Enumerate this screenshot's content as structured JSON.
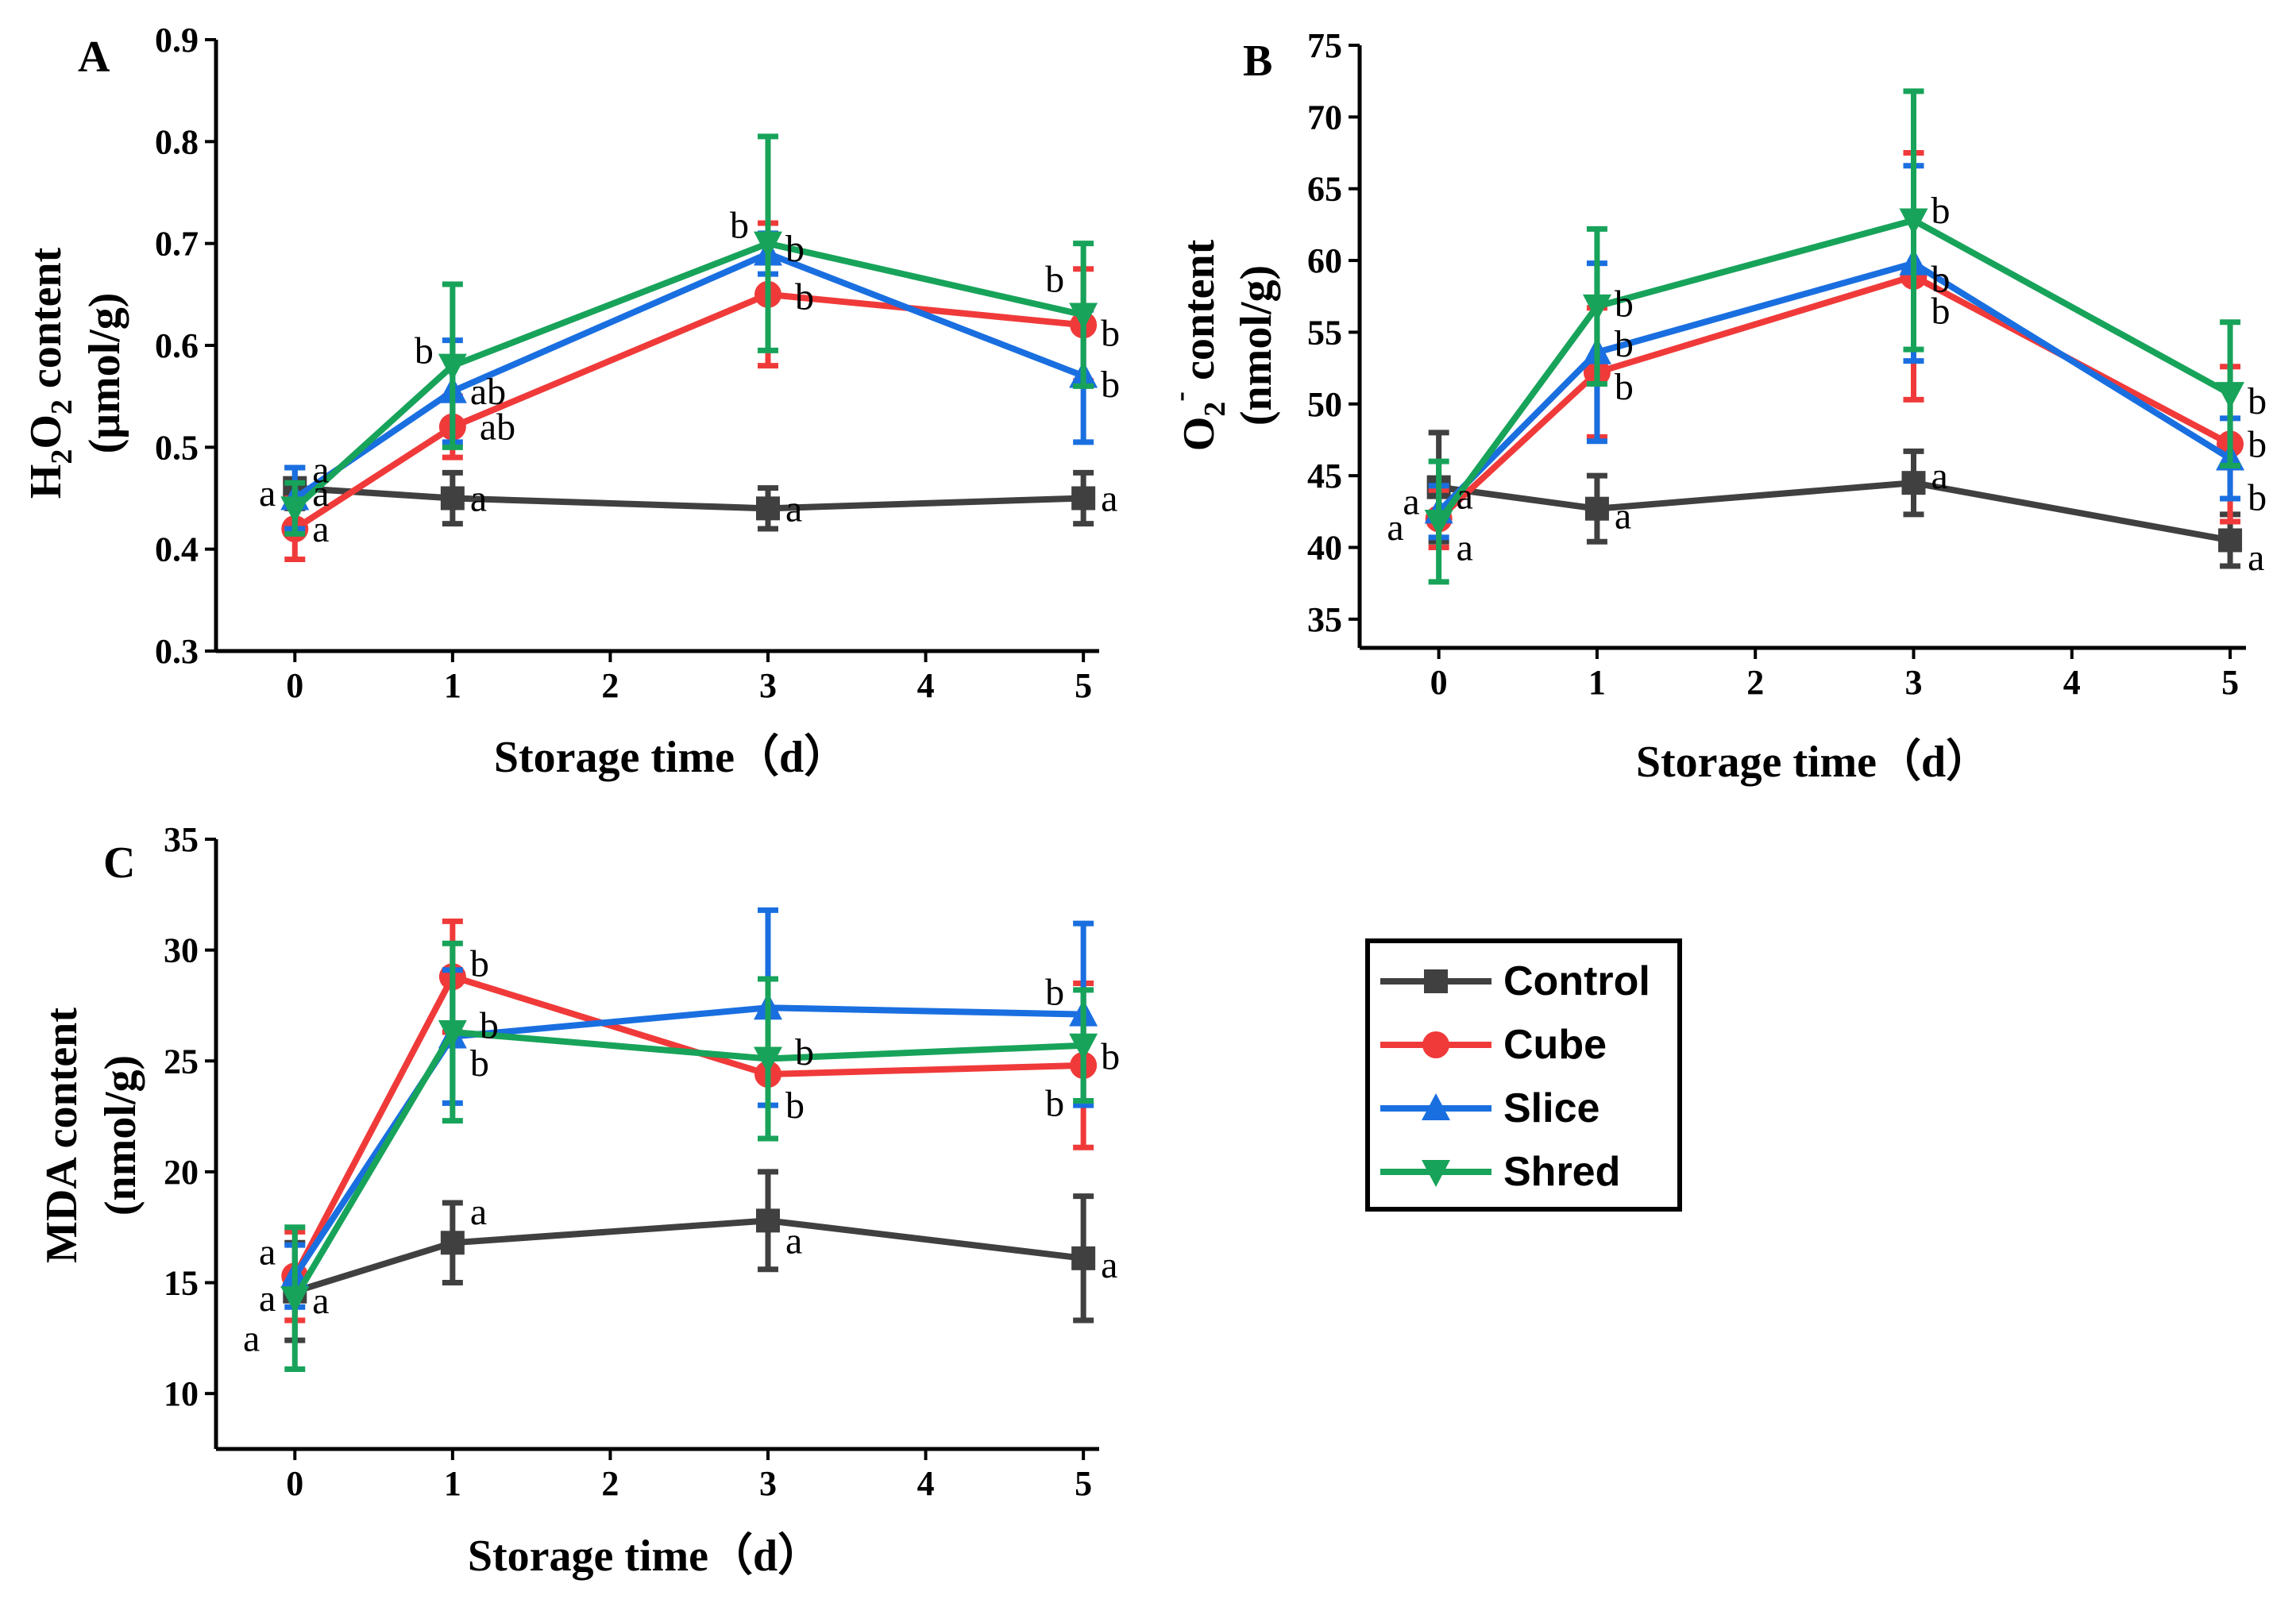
{
  "chart_data": [
    {
      "id": "A",
      "type": "line",
      "panel_label": "A",
      "xlabel": "Storage time（d）",
      "ylabel_main": "H",
      "ylabel_sub1": "2",
      "ylabel_mid": "O",
      "ylabel_sub2": "2",
      "ylabel_rest": " content",
      "ylabel_unit": "(μmol/g)",
      "xlim": [
        -0.5,
        5.1
      ],
      "ylim": [
        0.3,
        0.9
      ],
      "xticks": [
        0,
        1,
        2,
        3,
        4,
        5
      ],
      "xtick_labels": [
        "0",
        "1",
        "2",
        "3",
        "4",
        "5"
      ],
      "yticks": [
        0.3,
        0.4,
        0.5,
        0.6,
        0.7,
        0.8,
        0.9
      ],
      "ytick_labels": [
        "0.3",
        "0.4",
        "0.5",
        "0.6",
        "0.7",
        "0.8",
        "0.9"
      ],
      "x": [
        0,
        1,
        3,
        5
      ],
      "series": [
        {
          "name": "Control",
          "values": [
            0.46,
            0.45,
            0.44,
            0.45
          ],
          "err": [
            0.02,
            0.025,
            0.02,
            0.025
          ]
        },
        {
          "name": "Cube",
          "values": [
            0.42,
            0.52,
            0.65,
            0.62
          ],
          "err": [
            0.03,
            0.03,
            0.07,
            0.055
          ]
        },
        {
          "name": "Slice",
          "values": [
            0.45,
            0.555,
            0.69,
            0.57
          ],
          "err": [
            0.03,
            0.05,
            0.02,
            0.065
          ]
        },
        {
          "name": "Shred",
          "values": [
            0.44,
            0.58,
            0.7,
            0.63
          ],
          "err": [
            0.025,
            0.08,
            0.105,
            0.07
          ]
        }
      ],
      "sig_labels": [
        {
          "x": 0,
          "y": 0.455,
          "text": "a",
          "side": "left"
        },
        {
          "x": 0,
          "y": 0.478,
          "text": "a",
          "side": "right"
        },
        {
          "x": 0,
          "y": 0.455,
          "text": "a",
          "side": "right"
        },
        {
          "x": 0,
          "y": 0.42,
          "text": "a",
          "side": "right"
        },
        {
          "x": 1,
          "y": 0.45,
          "text": "a",
          "side": "right"
        },
        {
          "x": 1,
          "y": 0.555,
          "text": "ab",
          "side": "right"
        },
        {
          "x": 1,
          "y": 0.52,
          "text": "ab",
          "side": "right2"
        },
        {
          "x": 1,
          "y": 0.595,
          "text": "b",
          "side": "left"
        },
        {
          "x": 3,
          "y": 0.44,
          "text": "a",
          "side": "right"
        },
        {
          "x": 3,
          "y": 0.718,
          "text": "b",
          "side": "left"
        },
        {
          "x": 3,
          "y": 0.695,
          "text": "b",
          "side": "right"
        },
        {
          "x": 3,
          "y": 0.648,
          "text": "b",
          "side": "right2"
        },
        {
          "x": 5,
          "y": 0.45,
          "text": "a",
          "side": "right"
        },
        {
          "x": 5,
          "y": 0.665,
          "text": "b",
          "side": "left"
        },
        {
          "x": 5,
          "y": 0.612,
          "text": "b",
          "side": "right"
        },
        {
          "x": 5,
          "y": 0.562,
          "text": "b",
          "side": "right"
        }
      ]
    },
    {
      "id": "B",
      "type": "line",
      "panel_label": "B",
      "xlabel": "Storage time（d）",
      "ylabel_main": "O",
      "ylabel_sub1": "2",
      "ylabel_sup": "-",
      "ylabel_rest": " content",
      "ylabel_unit": "(nmol/g)",
      "xlim": [
        -0.5,
        5.1
      ],
      "ylim": [
        33,
        75
      ],
      "xticks": [
        0,
        1,
        2,
        3,
        4,
        5
      ],
      "xtick_labels": [
        "0",
        "1",
        "2",
        "3",
        "4",
        "5"
      ],
      "yticks": [
        35,
        40,
        45,
        50,
        55,
        60,
        65,
        70,
        75
      ],
      "ytick_labels": [
        "35",
        "40",
        "45",
        "50",
        "55",
        "60",
        "65",
        "70",
        "75"
      ],
      "x": [
        0,
        1,
        3,
        5
      ],
      "series": [
        {
          "name": "Control",
          "values": [
            44.2,
            42.7,
            44.5,
            40.5
          ],
          "err": [
            3.8,
            2.3,
            2.2,
            1.8
          ]
        },
        {
          "name": "Cube",
          "values": [
            42.0,
            52.2,
            58.9,
            47.2
          ],
          "err": [
            2.0,
            4.5,
            8.6,
            5.4
          ]
        },
        {
          "name": "Slice",
          "values": [
            42.5,
            53.6,
            59.8,
            46.2
          ],
          "err": [
            1.8,
            6.2,
            6.8,
            2.8
          ]
        },
        {
          "name": "Shred",
          "values": [
            41.8,
            56.8,
            62.8,
            50.7
          ],
          "err": [
            4.2,
            5.4,
            9.0,
            5.0
          ]
        }
      ],
      "sig_labels": [
        {
          "x": 0,
          "y": 43.2,
          "text": "a",
          "side": "left"
        },
        {
          "x": 0,
          "y": 43.6,
          "text": "a",
          "side": "right"
        },
        {
          "x": 0,
          "y": 41.4,
          "text": "a",
          "side": "left2"
        },
        {
          "x": 0,
          "y": 40.0,
          "text": "a",
          "side": "right"
        },
        {
          "x": 1,
          "y": 42.2,
          "text": "a",
          "side": "right"
        },
        {
          "x": 1,
          "y": 57.0,
          "text": "b",
          "side": "right"
        },
        {
          "x": 1,
          "y": 54.2,
          "text": "b",
          "side": "right"
        },
        {
          "x": 1,
          "y": 51.2,
          "text": "b",
          "side": "right"
        },
        {
          "x": 3,
          "y": 45.0,
          "text": "a",
          "side": "right"
        },
        {
          "x": 3,
          "y": 63.5,
          "text": "b",
          "side": "right"
        },
        {
          "x": 3,
          "y": 58.7,
          "text": "b",
          "side": "right"
        },
        {
          "x": 3,
          "y": 56.5,
          "text": "b",
          "side": "right"
        },
        {
          "x": 5,
          "y": 39.3,
          "text": "a",
          "side": "right"
        },
        {
          "x": 5,
          "y": 50.2,
          "text": "b",
          "side": "right"
        },
        {
          "x": 5,
          "y": 47.2,
          "text": "b",
          "side": "right"
        },
        {
          "x": 5,
          "y": 43.5,
          "text": "b",
          "side": "right"
        }
      ]
    },
    {
      "id": "C",
      "type": "line",
      "panel_label": "C",
      "xlabel": "Storage time（d）",
      "ylabel_main": "MDA content",
      "ylabel_unit": "(nmol/g)",
      "xlim": [
        -0.5,
        5.1
      ],
      "ylim": [
        7.5,
        35
      ],
      "xticks": [
        0,
        1,
        2,
        3,
        4,
        5
      ],
      "xtick_labels": [
        "0",
        "1",
        "2",
        "3",
        "4",
        "5"
      ],
      "yticks": [
        10,
        15,
        20,
        25,
        30,
        35
      ],
      "ytick_labels": [
        "10",
        "15",
        "20",
        "25",
        "30",
        "35"
      ],
      "x": [
        0,
        1,
        3,
        5
      ],
      "series": [
        {
          "name": "Control",
          "values": [
            14.6,
            16.8,
            17.8,
            16.1
          ],
          "err": [
            2.2,
            1.8,
            2.2,
            2.8
          ]
        },
        {
          "name": "Cube",
          "values": [
            15.3,
            28.8,
            24.4,
            24.8
          ],
          "err": [
            2.0,
            2.5,
            2.9,
            3.7
          ]
        },
        {
          "name": "Slice",
          "values": [
            15.3,
            26.1,
            27.4,
            27.1
          ],
          "err": [
            1.4,
            3.0,
            4.4,
            4.1
          ]
        },
        {
          "name": "Shred",
          "values": [
            14.3,
            26.3,
            25.1,
            25.7
          ],
          "err": [
            3.2,
            4.0,
            3.6,
            2.5
          ]
        }
      ],
      "sig_labels": [
        {
          "x": 0,
          "y": 16.4,
          "text": "a",
          "side": "left"
        },
        {
          "x": 0,
          "y": 14.3,
          "text": "a",
          "side": "left"
        },
        {
          "x": 0,
          "y": 14.2,
          "text": "a",
          "side": "right"
        },
        {
          "x": 0,
          "y": 12.5,
          "text": "a",
          "side": "left2"
        },
        {
          "x": 1,
          "y": 18.2,
          "text": "a",
          "side": "right"
        },
        {
          "x": 1,
          "y": 29.4,
          "text": "b",
          "side": "right"
        },
        {
          "x": 1,
          "y": 26.6,
          "text": "b",
          "side": "right2"
        },
        {
          "x": 1,
          "y": 24.9,
          "text": "b",
          "side": "right"
        },
        {
          "x": 3,
          "y": 16.9,
          "text": "a",
          "side": "right"
        },
        {
          "x": 3,
          "y": 25.4,
          "text": "b",
          "side": "right2"
        },
        {
          "x": 3,
          "y": 23.0,
          "text": "b",
          "side": "right"
        },
        {
          "x": 5,
          "y": 15.8,
          "text": "a",
          "side": "right"
        },
        {
          "x": 5,
          "y": 28.1,
          "text": "b",
          "side": "left"
        },
        {
          "x": 5,
          "y": 25.2,
          "text": "b",
          "side": "right"
        },
        {
          "x": 5,
          "y": 23.1,
          "text": "b",
          "side": "left"
        }
      ]
    }
  ],
  "legend": {
    "items": [
      {
        "name": "Control",
        "color": "#404040",
        "marker": "square"
      },
      {
        "name": "Cube",
        "color": "#f03a3a",
        "marker": "circle"
      },
      {
        "name": "Slice",
        "color": "#1a6fe0",
        "marker": "triangle-up"
      },
      {
        "name": "Shred",
        "color": "#18a35a",
        "marker": "triangle-down"
      }
    ]
  },
  "colors": {
    "Control": "#404040",
    "Cube": "#f03a3a",
    "Slice": "#1a6fe0",
    "Shred": "#18a35a"
  }
}
